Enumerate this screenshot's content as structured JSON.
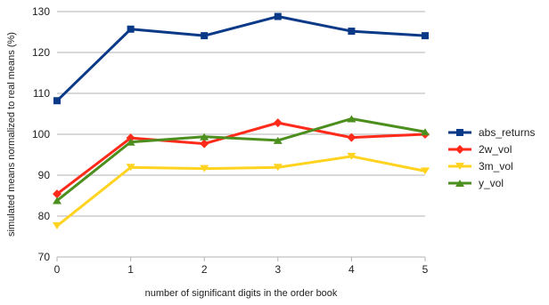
{
  "chart_data": {
    "type": "line",
    "title": "",
    "xlabel": "number of significant digits in the order book",
    "ylabel": "simulated means normalized to real means (%)",
    "x": [
      0,
      1,
      2,
      3,
      4,
      5
    ],
    "xlim": [
      0,
      5
    ],
    "ylim": [
      70,
      130
    ],
    "yticks": [
      70,
      80,
      90,
      100,
      110,
      120,
      130
    ],
    "grid": "horizontal",
    "legend": "right",
    "series": [
      {
        "name": "abs_returns",
        "color": "#0a3a87",
        "marker": "square",
        "values": [
          108.2,
          125.7,
          124.1,
          128.8,
          125.2,
          124.1
        ]
      },
      {
        "name": "2w_vol",
        "color": "#ff2a1a",
        "marker": "diamond",
        "values": [
          85.4,
          99.1,
          97.7,
          102.8,
          99.2,
          100.0
        ]
      },
      {
        "name": "3m_vol",
        "color": "#ffd320",
        "marker": "triangle-down",
        "values": [
          77.6,
          91.9,
          91.6,
          91.9,
          94.6,
          91.0
        ]
      },
      {
        "name": "y_vol",
        "color": "#4c8f1e",
        "marker": "triangle-up",
        "values": [
          83.8,
          98.1,
          99.4,
          98.5,
          103.8,
          100.6
        ]
      }
    ]
  }
}
